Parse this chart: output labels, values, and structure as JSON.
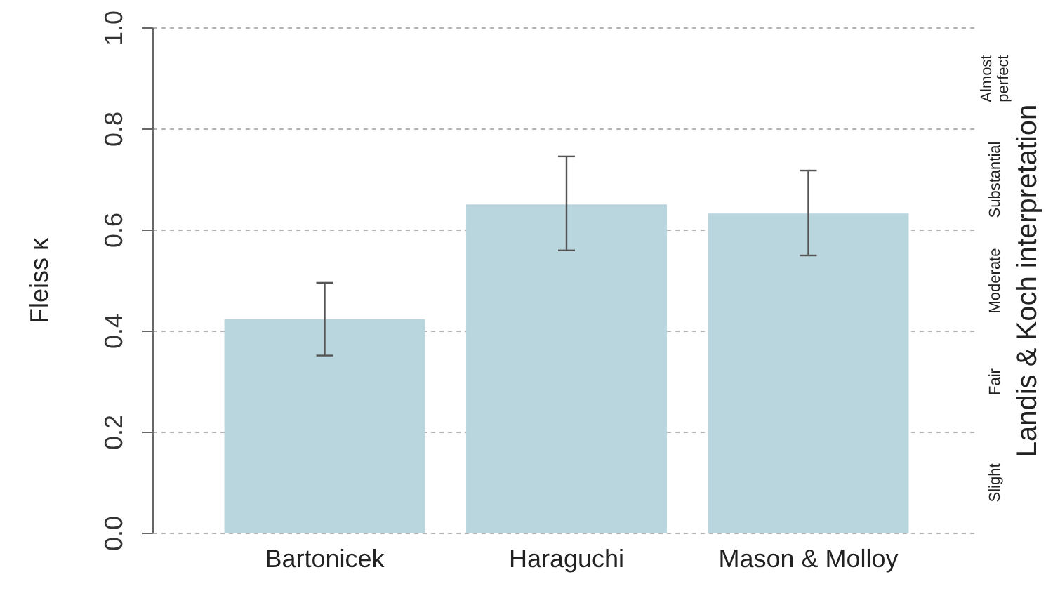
{
  "chart_data": {
    "type": "bar",
    "ylabel": "Fleiss κ",
    "y2label": "Landis & Koch interpretation",
    "categories": [
      "Bartonicek",
      "Haraguchi",
      "Mason & Molloy"
    ],
    "values": [
      0.424,
      0.651,
      0.633
    ],
    "color": "#b9d6de",
    "errors": [
      [
        0.352,
        0.496
      ],
      [
        0.56,
        0.746
      ],
      [
        0.55,
        0.718
      ]
    ],
    "ylim": [
      0,
      1
    ],
    "yticks": [
      {
        "value": 0,
        "label": "0.0"
      },
      0.2,
      0.4,
      0.6,
      0.8,
      {
        "value": 1,
        "label": "1.0"
      }
    ],
    "annotations": [
      "Slight",
      "Fair",
      "Moderate",
      "Substantial",
      "Almost perfect"
    ],
    "grid": "y"
  }
}
